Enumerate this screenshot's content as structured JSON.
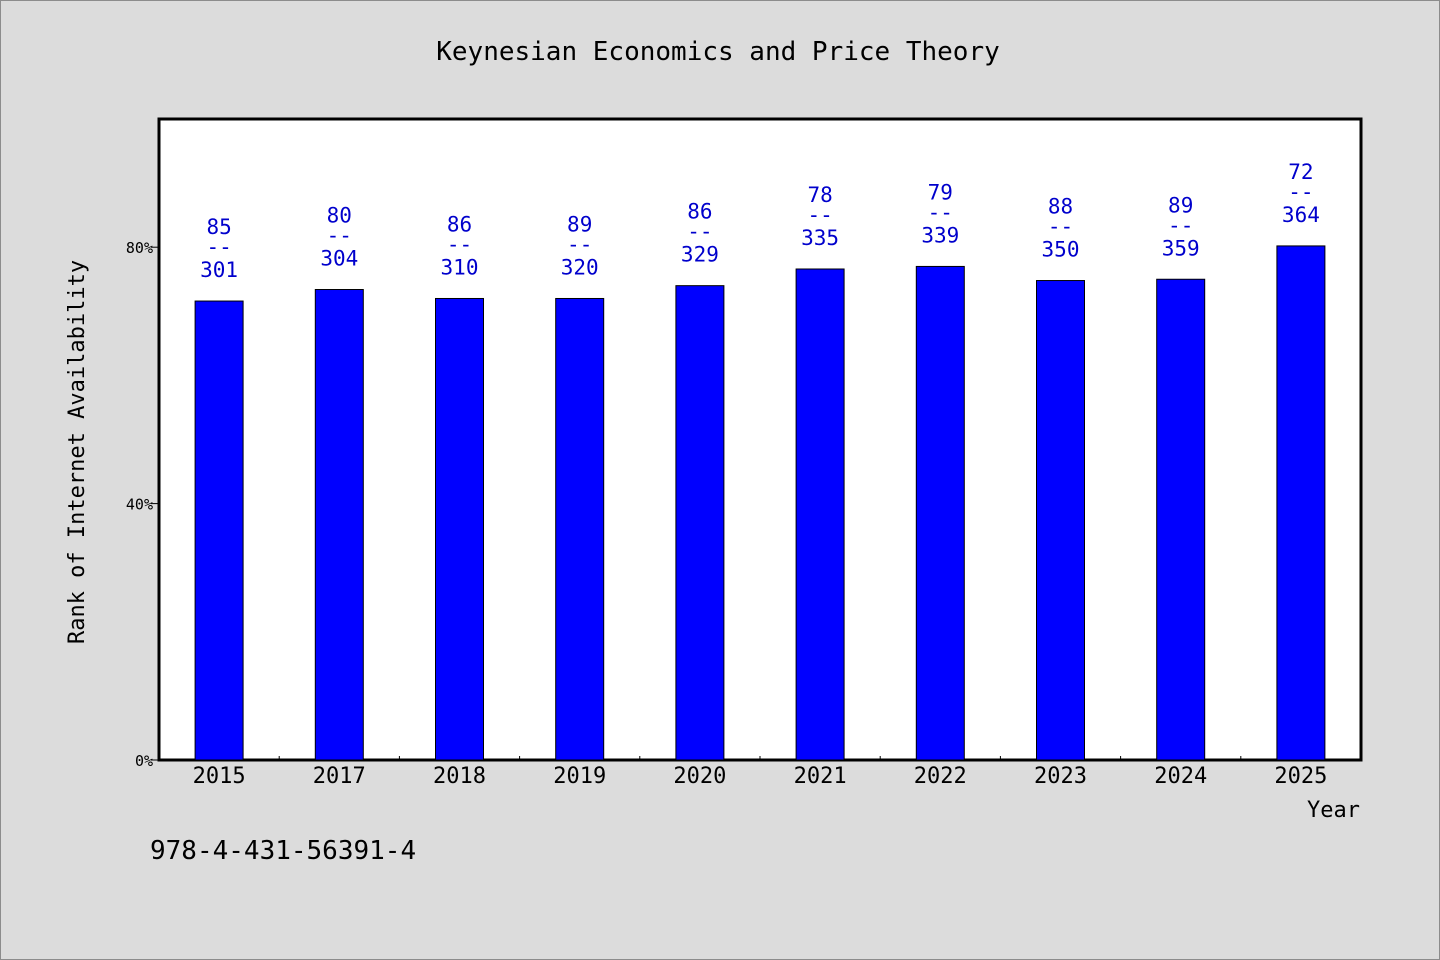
{
  "chart_data": {
    "type": "bar",
    "title": "Keynesian Economics and Price Theory",
    "xlabel": "Year",
    "ylabel": "Rank of Internet Availability",
    "ylim": [
      0,
      100
    ],
    "yticks": [
      0,
      40,
      80
    ],
    "ytick_labels": [
      "0%",
      "40%",
      "80%"
    ],
    "categories": [
      "2015",
      "2017",
      "2018",
      "2019",
      "2020",
      "2021",
      "2022",
      "2023",
      "2024",
      "2025"
    ],
    "values": [
      71.6,
      73.4,
      72.0,
      72.0,
      74.0,
      76.6,
      77.0,
      74.8,
      75.0,
      80.2
    ],
    "label_top": [
      "85",
      "80",
      "86",
      "89",
      "86",
      "78",
      "79",
      "88",
      "89",
      "72"
    ],
    "label_bottom": [
      "301",
      "304",
      "310",
      "320",
      "329",
      "335",
      "339",
      "350",
      "359",
      "364"
    ],
    "label_separator": "--",
    "bar_color": "#0000ff",
    "label_color": "#0000cc",
    "grid": false,
    "legend": "none"
  },
  "footer": {
    "code": "978-4-431-56391-4"
  }
}
